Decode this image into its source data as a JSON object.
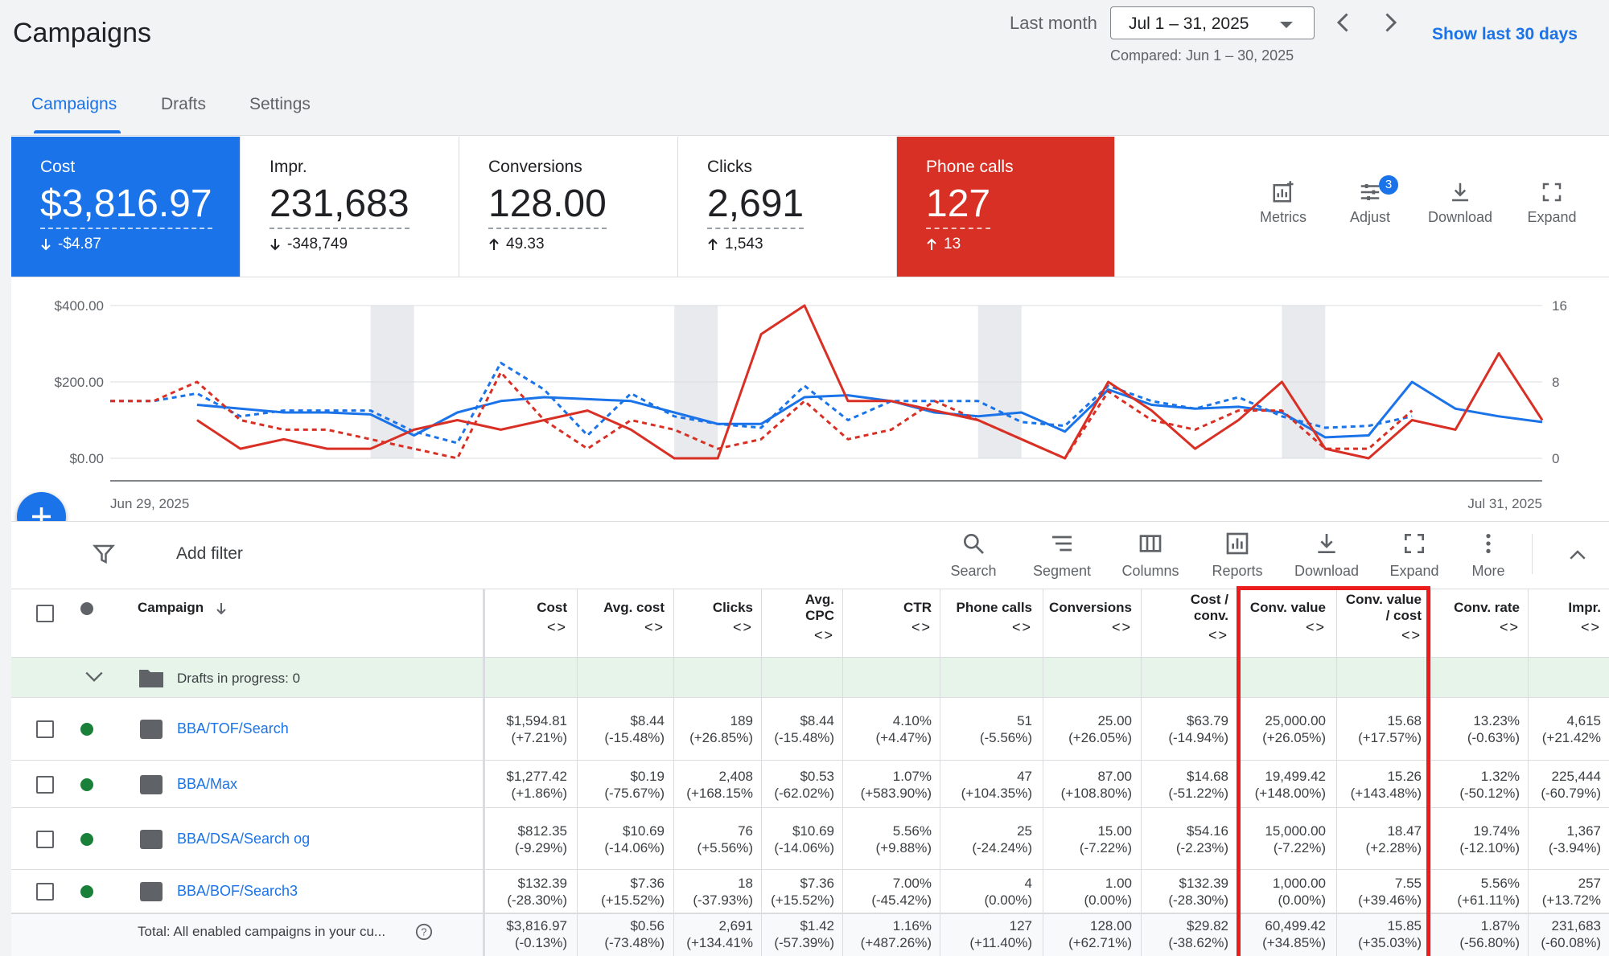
{
  "page": {
    "title": "Campaigns"
  },
  "date_range": {
    "label": "Last month",
    "value": "Jul 1 – 31, 2025",
    "compared": "Compared: Jun 1 – 30, 2025",
    "show_last": "Show last 30 days"
  },
  "tabs": [
    {
      "label": "Campaigns",
      "active": true
    },
    {
      "label": "Drafts",
      "active": false
    },
    {
      "label": "Settings",
      "active": false
    }
  ],
  "metric_cards": [
    {
      "label": "Cost",
      "value": "$3,816.97",
      "delta": "-$4.87",
      "direction": "down",
      "color": "#1a73e8"
    },
    {
      "label": "Impr.",
      "value": "231,683",
      "delta": "-348,749",
      "direction": "down",
      "color": ""
    },
    {
      "label": "Conversions",
      "value": "128.00",
      "delta": "49.33",
      "direction": "up",
      "color": ""
    },
    {
      "label": "Clicks",
      "value": "2,691",
      "delta": "1,543",
      "direction": "up",
      "color": ""
    },
    {
      "label": "Phone calls",
      "value": "127",
      "delta": "13",
      "direction": "up",
      "color": "#d93025"
    }
  ],
  "card_tools": [
    {
      "label": "Metrics",
      "icon": "metrics-icon"
    },
    {
      "label": "Adjust",
      "icon": "adjust-icon",
      "badge": "3"
    },
    {
      "label": "Download",
      "icon": "download-icon"
    },
    {
      "label": "Expand",
      "icon": "expand-icon"
    }
  ],
  "chart_data": {
    "type": "line",
    "x_start": "Jun 29, 2025",
    "x_end": "Jul 31, 2025",
    "y_left_ticks": [
      "$400.00",
      "$200.00",
      "$0.00"
    ],
    "y_right_ticks": [
      "16",
      "8",
      "0"
    ],
    "ylim_left": [
      0,
      400
    ],
    "ylim_right": [
      0,
      16
    ],
    "grid": true,
    "shaded_weekend_index_ranges": [
      [
        6,
        7
      ],
      [
        13,
        14
      ],
      [
        20,
        21
      ],
      [
        27,
        28
      ]
    ],
    "series": [
      {
        "axis": "left",
        "color": "#1a73e8",
        "dash": false,
        "values": [
          null,
          null,
          140,
          130,
          120,
          120,
          115,
          60,
          120,
          150,
          160,
          155,
          150,
          120,
          90,
          90,
          160,
          165,
          150,
          120,
          110,
          120,
          70,
          180,
          140,
          130,
          135,
          120,
          55,
          60,
          200,
          130,
          110,
          95
        ]
      },
      {
        "axis": "left",
        "color": "#1a73e8",
        "dash": true,
        "values": [
          150,
          150,
          170,
          110,
          125,
          125,
          125,
          70,
          40,
          250,
          180,
          60,
          170,
          110,
          90,
          80,
          190,
          100,
          150,
          150,
          150,
          95,
          85,
          190,
          150,
          130,
          160,
          110,
          80,
          85,
          110,
          null,
          null,
          null
        ]
      },
      {
        "axis": "right",
        "color": "#d93025",
        "dash": false,
        "values": [
          null,
          null,
          4,
          1,
          2,
          1,
          1,
          3,
          4,
          3,
          4,
          5,
          3,
          0,
          0,
          13,
          16,
          6,
          6,
          5,
          4,
          2,
          0,
          8,
          5,
          1,
          4,
          8,
          1,
          0,
          4,
          3,
          11,
          4
        ]
      },
      {
        "axis": "right",
        "color": "#d93025",
        "dash": true,
        "values": [
          6,
          6,
          8,
          4,
          3,
          3,
          2,
          1,
          0,
          9,
          4,
          1,
          4,
          3,
          1,
          2,
          6,
          2,
          3,
          6,
          4,
          2,
          0,
          7,
          4,
          3,
          5,
          5,
          1,
          1,
          5,
          null,
          null,
          null
        ]
      }
    ]
  },
  "toolbar": {
    "add_filter": "Add filter",
    "buttons": [
      {
        "label": "Search",
        "icon": "search-icon"
      },
      {
        "label": "Segment",
        "icon": "segment-icon"
      },
      {
        "label": "Columns",
        "icon": "columns-icon"
      },
      {
        "label": "Reports",
        "icon": "reports-icon"
      },
      {
        "label": "Download",
        "icon": "download-icon"
      },
      {
        "label": "Expand",
        "icon": "expand-icon"
      },
      {
        "label": "More",
        "icon": "more-vert-icon"
      }
    ]
  },
  "table": {
    "campaign_header": "Campaign",
    "columns": [
      {
        "label": [
          "Cost"
        ]
      },
      {
        "label": [
          "Avg. cost"
        ]
      },
      {
        "label": [
          "Clicks"
        ]
      },
      {
        "label": [
          "Avg.",
          "CPC"
        ]
      },
      {
        "label": [
          "CTR"
        ]
      },
      {
        "label": [
          "Phone calls"
        ]
      },
      {
        "label": [
          "Conversions"
        ]
      },
      {
        "label": [
          "Cost /",
          "conv."
        ]
      },
      {
        "label": [
          "Conv. value"
        ]
      },
      {
        "label": [
          "Conv. value",
          "/ cost"
        ]
      },
      {
        "label": [
          "Conv. rate"
        ]
      },
      {
        "label": [
          "Impr."
        ]
      }
    ],
    "sort_glyph": "<>",
    "drafts_row": "Drafts in progress: 0",
    "rows": [
      {
        "name": "BBA/TOF/Search",
        "icon": "search-campaign-icon",
        "status_color": "#188038",
        "cells": [
          [
            "$1,594.81",
            "(+7.21%)"
          ],
          [
            "$8.44",
            "(-15.48%)"
          ],
          [
            "189",
            "(+26.85%)"
          ],
          [
            "$8.44",
            "(-15.48%)"
          ],
          [
            "4.10%",
            "(+4.47%)"
          ],
          [
            "51",
            "(-5.56%)"
          ],
          [
            "25.00",
            "(+26.05%)"
          ],
          [
            "$63.79",
            "(-14.94%)"
          ],
          [
            "25,000.00",
            "(+26.05%)"
          ],
          [
            "15.68",
            "(+17.57%)"
          ],
          [
            "13.23%",
            "(-0.63%)"
          ],
          [
            "4,615",
            "(+21.42%"
          ]
        ]
      },
      {
        "name": "BBA/Max",
        "icon": "performance-max-icon",
        "status_color": "#188038",
        "cells": [
          [
            "$1,277.42",
            "(+1.86%)"
          ],
          [
            "$0.19",
            "(-75.67%)"
          ],
          [
            "2,408",
            "(+168.15%"
          ],
          [
            "$0.53",
            "(-62.02%)"
          ],
          [
            "1.07%",
            "(+583.90%)"
          ],
          [
            "47",
            "(+104.35%)"
          ],
          [
            "87.00",
            "(+108.80%)"
          ],
          [
            "$14.68",
            "(-51.22%)"
          ],
          [
            "19,499.42",
            "(+148.00%)"
          ],
          [
            "15.26",
            "(+143.48%)"
          ],
          [
            "1.32%",
            "(-50.12%)"
          ],
          [
            "225,444",
            "(-60.79%)"
          ]
        ]
      },
      {
        "name": "BBA/DSA/Search og",
        "icon": "search-campaign-icon",
        "status_color": "#188038",
        "cells": [
          [
            "$812.35",
            "(-9.29%)"
          ],
          [
            "$10.69",
            "(-14.06%)"
          ],
          [
            "76",
            "(+5.56%)"
          ],
          [
            "$10.69",
            "(-14.06%)"
          ],
          [
            "5.56%",
            "(+9.88%)"
          ],
          [
            "25",
            "(-24.24%)"
          ],
          [
            "15.00",
            "(-7.22%)"
          ],
          [
            "$54.16",
            "(-2.23%)"
          ],
          [
            "15,000.00",
            "(-7.22%)"
          ],
          [
            "18.47",
            "(+2.28%)"
          ],
          [
            "19.74%",
            "(-12.10%)"
          ],
          [
            "1,367",
            "(-3.94%)"
          ]
        ]
      },
      {
        "name": "BBA/BOF/Search3",
        "icon": "search-campaign-icon",
        "status_color": "#188038",
        "cells": [
          [
            "$132.39",
            "(-28.30%)"
          ],
          [
            "$7.36",
            "(+15.52%)"
          ],
          [
            "18",
            "(-37.93%)"
          ],
          [
            "$7.36",
            "(+15.52%)"
          ],
          [
            "7.00%",
            "(-45.42%)"
          ],
          [
            "4",
            "(0.00%)"
          ],
          [
            "1.00",
            "(0.00%)"
          ],
          [
            "$132.39",
            "(-28.30%)"
          ],
          [
            "1,000.00",
            "(0.00%)"
          ],
          [
            "7.55",
            "(+39.46%)"
          ],
          [
            "5.56%",
            "(+61.11%)"
          ],
          [
            "257",
            "(+13.72%"
          ]
        ]
      }
    ],
    "total": {
      "label": "Total: All enabled campaigns in your cu...",
      "cells": [
        [
          "$3,816.97",
          "(-0.13%)"
        ],
        [
          "$0.56",
          "(-73.48%)"
        ],
        [
          "2,691",
          "(+134.41%"
        ],
        [
          "$1.42",
          "(-57.39%)"
        ],
        [
          "1.16%",
          "(+487.26%)"
        ],
        [
          "127",
          "(+11.40%)"
        ],
        [
          "128.00",
          "(+62.71%)"
        ],
        [
          "$29.82",
          "(-38.62%)"
        ],
        [
          "60,499.42",
          "(+34.85%)"
        ],
        [
          "15.85",
          "(+35.03%)"
        ],
        [
          "1.87%",
          "(-56.80%)"
        ],
        [
          "231,683",
          "(-60.08%)"
        ]
      ]
    }
  }
}
